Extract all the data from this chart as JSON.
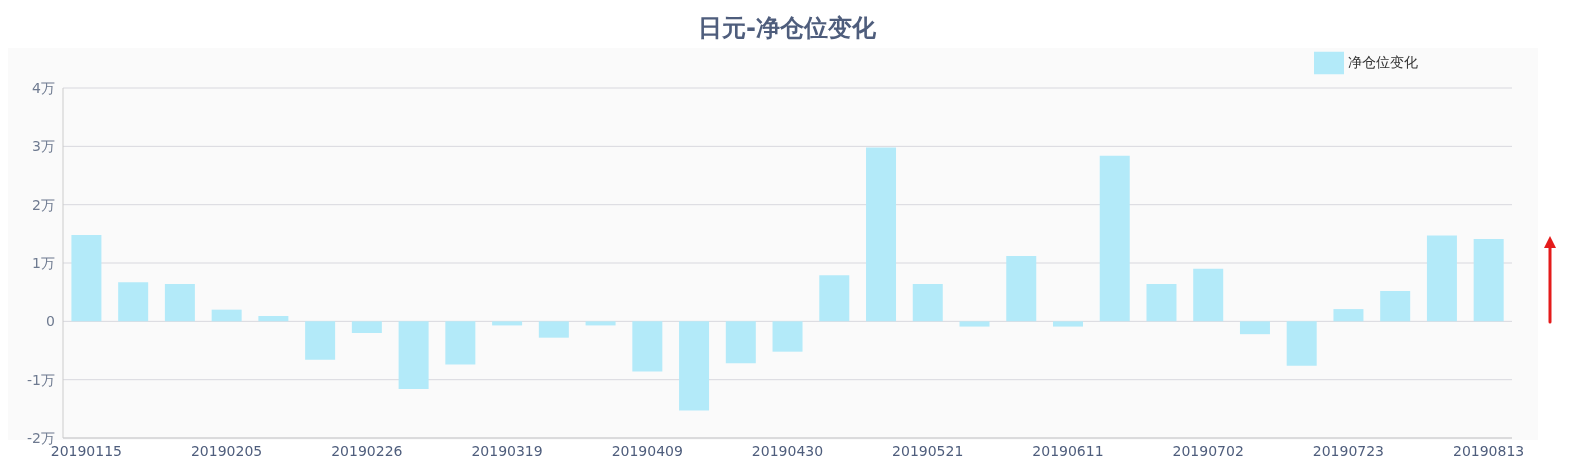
{
  "chart_data": {
    "type": "bar",
    "title": "日元-净仓位变化",
    "categories": [
      "20190115",
      null,
      null,
      "20190205",
      null,
      null,
      "20190226",
      null,
      null,
      "20190319",
      null,
      null,
      "20190409",
      null,
      null,
      "20190430",
      null,
      null,
      "20190521",
      null,
      null,
      "20190611",
      null,
      null,
      "20190702",
      null,
      null,
      "20190723",
      null,
      null,
      "20190813"
    ],
    "series": [
      {
        "name": "净仓位变化",
        "color": "#b3eaf9",
        "values": [
          1.48,
          0.67,
          0.64,
          0.2,
          0.09,
          -0.66,
          -0.2,
          -1.16,
          -0.74,
          -0.07,
          -0.28,
          -0.07,
          -0.86,
          -1.53,
          -0.72,
          -0.52,
          0.79,
          2.98,
          0.64,
          -0.09,
          1.12,
          -0.09,
          2.84,
          0.64,
          0.9,
          -0.22,
          -0.76,
          0.21,
          0.52,
          1.47,
          1.41
        ]
      }
    ],
    "ylim": [
      -2,
      4
    ],
    "yticks": [
      {
        "value": -2,
        "label": "-2万"
      },
      {
        "value": -1,
        "label": "-1万"
      },
      0,
      {
        "value": 1,
        "label": "1万"
      },
      {
        "value": 2,
        "label": "2万"
      },
      {
        "value": 3,
        "label": "3万"
      },
      {
        "value": 4,
        "label": "4万"
      }
    ],
    "grid": "y",
    "legend": "top right"
  }
}
